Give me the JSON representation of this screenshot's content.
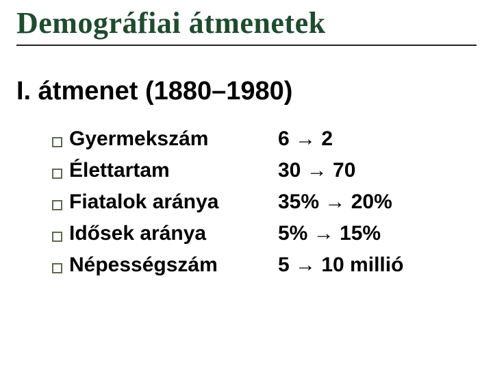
{
  "title": "Demográfiai átmenetek",
  "subtitle": "I. átmenet (1880–1980)",
  "colors": {
    "title": "#1f4b2e",
    "underline": "#222222",
    "text": "#000000",
    "bullet_border": "#5a6b4c",
    "background": "#ffffff"
  },
  "typography": {
    "title_fontsize": 44,
    "subtitle_fontsize": 38,
    "item_fontsize": 30,
    "title_family": "Times New Roman",
    "body_family": "Arial",
    "weight": 700
  },
  "layout": {
    "slide_width": 720,
    "slide_height": 540,
    "label_col_width": 305
  },
  "items": [
    {
      "label": "Gyermekszám",
      "value": "6 → 2"
    },
    {
      "label": "Élettartam",
      "value": "30 → 70"
    },
    {
      "label": "Fiatalok aránya",
      "value": "35% → 20%"
    },
    {
      "label": "Idősek aránya",
      "value": "5% → 15%"
    },
    {
      "label": "Népességszám",
      "value": "5 → 10 millió"
    }
  ]
}
